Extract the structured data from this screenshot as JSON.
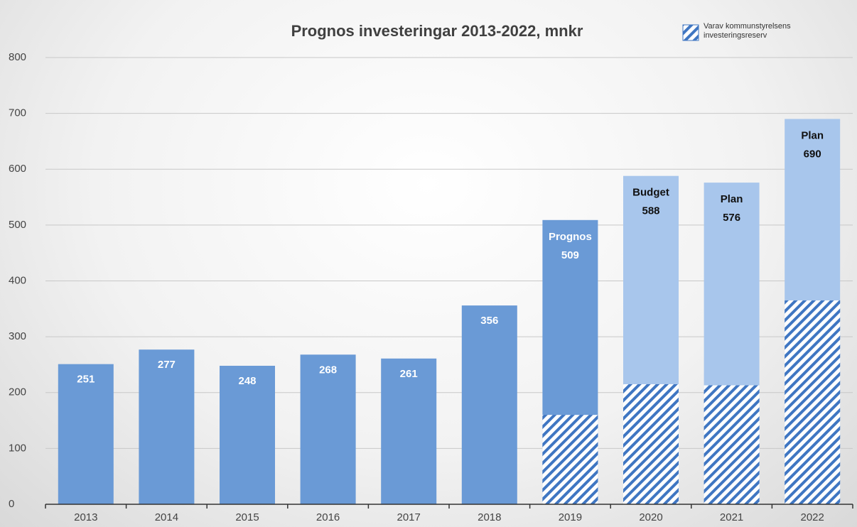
{
  "chart_data": {
    "type": "bar",
    "title": "Prognos investeringar 2013-2022,  mnkr",
    "categories": [
      "2013",
      "2014",
      "2015",
      "2016",
      "2017",
      "2018",
      "2019",
      "2020",
      "2021",
      "2022"
    ],
    "values": [
      251,
      277,
      248,
      268,
      261,
      356,
      509,
      588,
      576,
      690
    ],
    "bar_colors": [
      "#6a9ad6",
      "#6a9ad6",
      "#6a9ad6",
      "#6a9ad6",
      "#6a9ad6",
      "#6a9ad6",
      "#6a9ad6",
      "#a8c6ec",
      "#a8c6ec",
      "#a8c6ec"
    ],
    "label_prefixes": [
      null,
      null,
      null,
      null,
      null,
      null,
      "Prognos",
      "Budget",
      "Plan",
      "Plan"
    ],
    "label_colors": [
      "#ffffff",
      "#ffffff",
      "#ffffff",
      "#ffffff",
      "#ffffff",
      "#ffffff",
      "#ffffff",
      "#111111",
      "#111111",
      "#111111"
    ],
    "series": [
      {
        "name": "Varav kommunstyrelsens investeringsreserv",
        "color": "#3f76c2",
        "pattern": "hatch",
        "values": [
          null,
          null,
          null,
          null,
          null,
          null,
          160,
          215,
          213,
          365
        ]
      }
    ],
    "ylim": [
      0,
      800
    ],
    "yticks": [
      0,
      100,
      200,
      300,
      400,
      500,
      600,
      700,
      800
    ],
    "grid": true,
    "legend": "top-right"
  }
}
